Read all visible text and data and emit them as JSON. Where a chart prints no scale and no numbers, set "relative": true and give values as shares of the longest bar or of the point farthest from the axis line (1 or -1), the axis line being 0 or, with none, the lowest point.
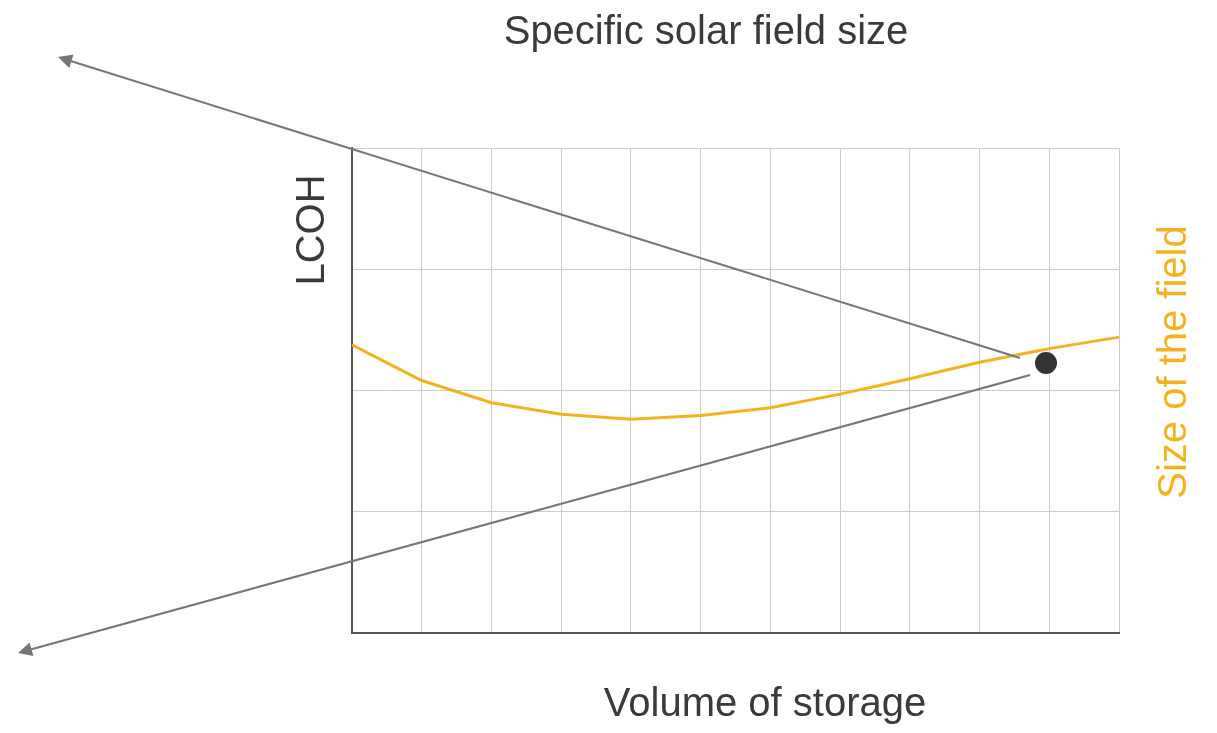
{
  "chart_data": {
    "type": "line",
    "title": "Specific solar field size",
    "xlabel": "Volume of storage",
    "ylabel": "LCOH",
    "y2label": "Size of the field",
    "relative": true,
    "grid": true,
    "categories": [
      null,
      null,
      null,
      null,
      null,
      null,
      null,
      null,
      null,
      null,
      null,
      null
    ],
    "series": [
      {
        "color": "#f5b21f",
        "values": [
          0.974,
          0.853,
          0.778,
          0.739,
          0.722,
          0.735,
          0.761,
          0.807,
          0.859,
          0.915,
          0.961,
          1
        ]
      }
    ]
  }
}
